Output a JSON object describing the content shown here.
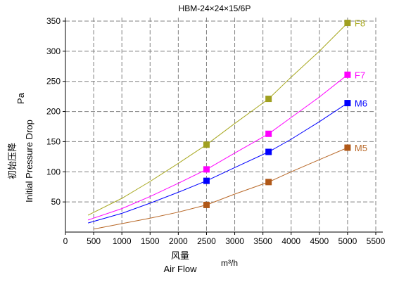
{
  "chart_data": {
    "type": "line",
    "title": "HBM-24×24×15/6P",
    "xlabel_cn": "风量",
    "xlabel": "Air Flow",
    "x_unit": "m³/h",
    "ylabel_cn": "初始压降",
    "ylabel": "Initial Pressure Drop",
    "y_unit": "Pa",
    "xlim": [
      0,
      5500
    ],
    "ylim": [
      0,
      350
    ],
    "x_ticks": [
      0,
      500,
      1000,
      1500,
      2000,
      2500,
      3000,
      3500,
      4000,
      4500,
      5000,
      5500
    ],
    "y_ticks": [
      50,
      100,
      150,
      200,
      250,
      300,
      350
    ],
    "grid": true,
    "series": [
      {
        "name": "F8",
        "color": "#a8a820",
        "marker_color": "#a0a020",
        "points": [
          [
            2500,
            145
          ],
          [
            3600,
            221
          ],
          [
            5000,
            347
          ]
        ],
        "curve": [
          [
            400,
            28
          ],
          [
            1000,
            56
          ],
          [
            1500,
            84
          ],
          [
            2000,
            114
          ],
          [
            2500,
            145
          ],
          [
            3000,
            180
          ],
          [
            3600,
            221
          ],
          [
            4000,
            257
          ],
          [
            4500,
            300
          ],
          [
            5000,
            347
          ]
        ]
      },
      {
        "name": "F7",
        "color": "#ff00ff",
        "marker_color": "#ff00ff",
        "points": [
          [
            2500,
            104
          ],
          [
            3600,
            163
          ],
          [
            5000,
            261
          ]
        ],
        "curve": [
          [
            400,
            20
          ],
          [
            1000,
            39
          ],
          [
            1500,
            59
          ],
          [
            2000,
            81
          ],
          [
            2500,
            104
          ],
          [
            3000,
            131
          ],
          [
            3600,
            163
          ],
          [
            4000,
            190
          ],
          [
            4500,
            224
          ],
          [
            5000,
            261
          ]
        ]
      },
      {
        "name": "M6",
        "color": "#0000ff",
        "marker_color": "#0000ff",
        "points": [
          [
            2500,
            85
          ],
          [
            3600,
            133
          ],
          [
            5000,
            214
          ]
        ],
        "curve": [
          [
            400,
            15
          ],
          [
            1000,
            31
          ],
          [
            1500,
            48
          ],
          [
            2000,
            66
          ],
          [
            2500,
            85
          ],
          [
            3000,
            107
          ],
          [
            3600,
            133
          ],
          [
            4000,
            154
          ],
          [
            4500,
            183
          ],
          [
            5000,
            214
          ]
        ]
      },
      {
        "name": "M5",
        "color": "#b86828",
        "marker_color": "#b05818",
        "points": [
          [
            2500,
            45
          ],
          [
            3600,
            83
          ],
          [
            5000,
            140
          ]
        ],
        "curve": [
          [
            500,
            5
          ],
          [
            1000,
            14
          ],
          [
            1500,
            23
          ],
          [
            2000,
            33
          ],
          [
            2500,
            45
          ],
          [
            3000,
            63
          ],
          [
            3600,
            83
          ],
          [
            4000,
            100
          ],
          [
            4500,
            120
          ],
          [
            5000,
            140
          ]
        ]
      }
    ]
  }
}
